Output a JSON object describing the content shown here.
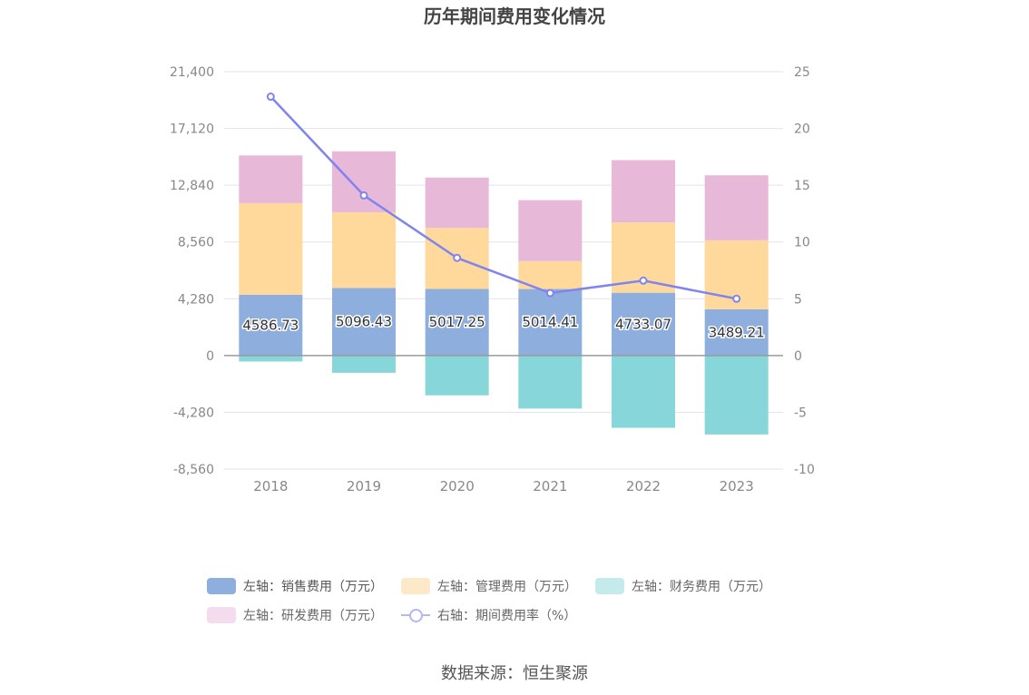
{
  "chart_data": {
    "type": "bar",
    "title": "历年期间费用变化情况",
    "categories": [
      "2018",
      "2019",
      "2020",
      "2021",
      "2022",
      "2023"
    ],
    "left_axis": {
      "min": -8560,
      "max": 21400,
      "ticks": [
        "21,400",
        "17,120",
        "12,840",
        "8,560",
        "4,280",
        "0",
        "-4,280",
        "-8,560"
      ]
    },
    "right_axis": {
      "min": -10,
      "max": 25,
      "ticks": [
        "25",
        "20",
        "15",
        "10",
        "5",
        "0",
        "-5",
        "-10"
      ]
    },
    "series": [
      {
        "name": "左轴：销售费用（万元）",
        "color": "#8eaedd",
        "values": [
          4586.73,
          5096.43,
          5017.25,
          5014.41,
          4733.07,
          3489.21
        ],
        "labels": [
          "4586.73",
          "5096.43",
          "5017.25",
          "5014.41",
          "4733.07",
          "3489.21"
        ]
      },
      {
        "name": "左轴：管理费用（万元）",
        "color": "#fed99b",
        "values": [
          6900,
          5700,
          4600,
          2100,
          5300,
          5200
        ]
      },
      {
        "name": "左轴：财务费用（万元）",
        "color": "#86d6da",
        "values": [
          -450,
          -1300,
          -3000,
          -4000,
          -5450,
          -5950
        ]
      },
      {
        "name": "左轴：研发费用（万元）",
        "color": "#e8b8d9",
        "values": [
          3600,
          4600,
          3800,
          4600,
          4700,
          4900
        ]
      },
      {
        "name": "右轴：期间费用率（%）",
        "color": "#8084ef",
        "type": "line",
        "values": [
          22.8,
          14.1,
          8.6,
          5.5,
          6.6,
          5.0
        ]
      }
    ],
    "grid": true,
    "legend_position": "bottom"
  },
  "legend": [
    [
      "左轴：销售费用（万元）",
      "左轴：管理费用（万元）",
      "左轴：财务费用（万元）"
    ],
    [
      "左轴：研发费用（万元）",
      "右轴：期间费用率（%）"
    ]
  ],
  "source_text": "数据来源：恒生聚源"
}
